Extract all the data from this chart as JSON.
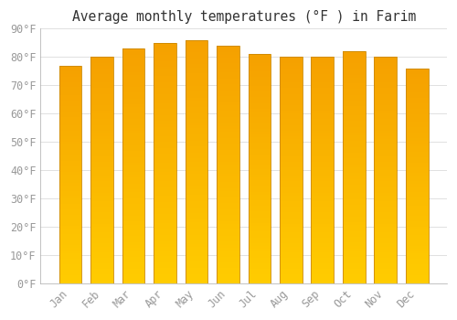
{
  "title": "Average monthly temperatures (°F ) in Farim",
  "months": [
    "Jan",
    "Feb",
    "Mar",
    "Apr",
    "May",
    "Jun",
    "Jul",
    "Aug",
    "Sep",
    "Oct",
    "Nov",
    "Dec"
  ],
  "values": [
    77,
    80,
    83,
    85,
    86,
    84,
    81,
    80,
    80,
    82,
    80,
    76
  ],
  "bar_color_bottom": "#FFCC00",
  "bar_color_top": "#F5A000",
  "background_color": "#FFFFFF",
  "grid_color": "#E0E0E0",
  "ylim": [
    0,
    90
  ],
  "yticks": [
    0,
    10,
    20,
    30,
    40,
    50,
    60,
    70,
    80,
    90
  ],
  "title_fontsize": 10.5,
  "tick_fontsize": 8.5,
  "axis_label_color": "#999999",
  "bar_edge_color": "#CC8800",
  "bar_width": 0.72
}
